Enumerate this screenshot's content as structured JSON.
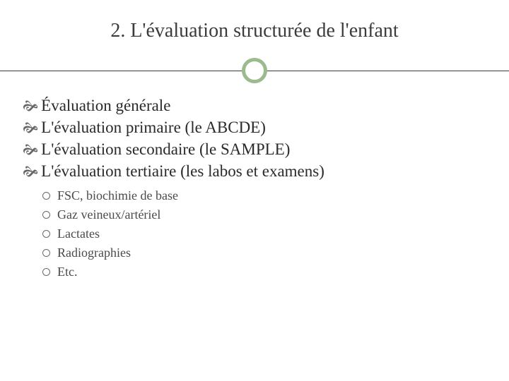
{
  "title": "2.  L'évaluation structurée de l'enfant",
  "colors": {
    "accent": "#9bbb8f",
    "text_primary": "#2a2a2a",
    "text_title": "#3b3b3b",
    "text_secondary": "#4a4a4a",
    "divider": "#3b3b3b",
    "background": "#ffffff"
  },
  "typography": {
    "title_fontsize": 28,
    "main_fontsize": 23,
    "sub_fontsize": 18,
    "font_family": "Georgia"
  },
  "main_items": [
    {
      "label": "Évaluation générale"
    },
    {
      "label": "L'évaluation primaire (le ABCDE)"
    },
    {
      "label": "L'évaluation secondaire (le SAMPLE)"
    },
    {
      "label": "L'évaluation tertiaire (les labos et examens)"
    }
  ],
  "sub_items": [
    {
      "label": "FSC, biochimie de base"
    },
    {
      "label": "Gaz veineux/artériel"
    },
    {
      "label": "Lactates"
    },
    {
      "label": "Radiographies"
    },
    {
      "label": "Etc."
    }
  ]
}
